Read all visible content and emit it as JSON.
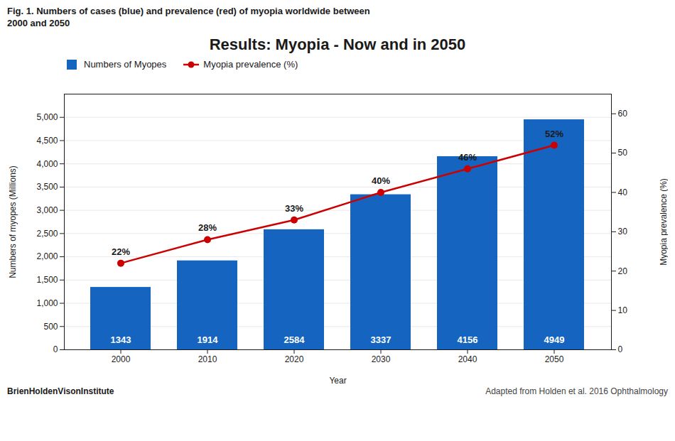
{
  "chart_data": {
    "type": "bar",
    "title": "Results: Myopia - Now and in 2050",
    "subtitle": "Fig. 1. Numbers of cases (blue) and prevalence (red) of myopia worldwide between\n2000 and 2050",
    "x_label": "Year",
    "y_label": "Numbers of myopes (Millions)",
    "y2_label": "Myopia prevalence (%)",
    "categories": [
      "2000",
      "2010",
      "2020",
      "2030",
      "2040",
      "2050"
    ],
    "series": [
      {
        "name": "Numbers of Myopes",
        "type": "bar",
        "color": "#1565C0",
        "values": [
          1343,
          1914,
          2584,
          3337,
          4156,
          4949
        ]
      },
      {
        "name": "Myopia prevalence (%)",
        "type": "line",
        "marker": "circle",
        "color": "#CC0000",
        "axis": "y2",
        "values": [
          22,
          28,
          33,
          40,
          46,
          52
        ],
        "value_labels": [
          "22%",
          "28%",
          "33%",
          "40%",
          "46%",
          "52%"
        ]
      }
    ],
    "ylim": [
      0,
      5500
    ],
    "yticks": [
      0,
      500,
      1000,
      1500,
      2000,
      2500,
      3000,
      3500,
      4000,
      4500,
      5000
    ],
    "y2lim": [
      0,
      65
    ],
    "y2ticks": [
      0,
      10,
      20,
      30,
      40,
      50,
      60
    ],
    "grid": true,
    "legend": "top",
    "data_labels": true,
    "annotations": [
      "BrienHoldenVisonInstitute",
      "Adapted from Holden et al. 2016 Ophthalmology"
    ]
  }
}
